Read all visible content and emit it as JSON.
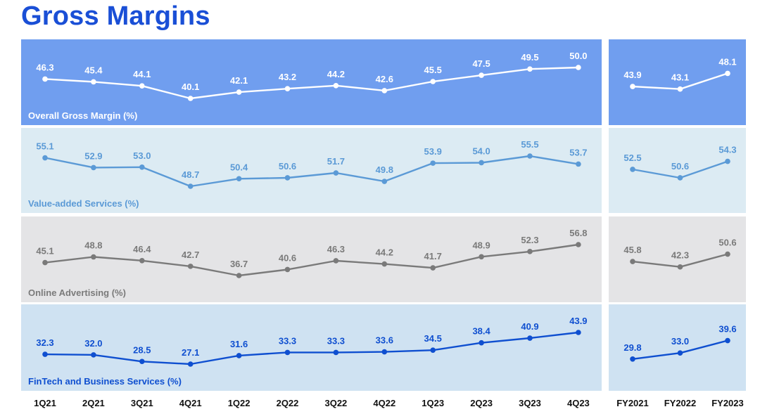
{
  "title": "Gross Margins",
  "chart_data": {
    "type": "line",
    "title": "Gross Margins",
    "quarter_categories": [
      "1Q21",
      "2Q21",
      "3Q21",
      "4Q21",
      "1Q22",
      "2Q22",
      "3Q22",
      "4Q22",
      "1Q23",
      "2Q23",
      "3Q23",
      "4Q23"
    ],
    "year_categories": [
      "FY2021",
      "FY2022",
      "FY2023"
    ],
    "series": [
      {
        "name": "Overall Gross Margin (%)",
        "quarterly": [
          46.3,
          45.4,
          44.1,
          40.1,
          42.1,
          43.2,
          44.2,
          42.6,
          45.5,
          47.5,
          49.5,
          50.0
        ],
        "quarterly_labels": [
          "46.3",
          "45.4",
          "44.1",
          "40.1",
          "42.1",
          "43.2",
          "44.2",
          "42.6",
          "45.5",
          "47.5",
          "49.5",
          "50.0"
        ],
        "yearly": [
          43.9,
          43.1,
          48.1
        ],
        "yearly_labels": [
          "43.9",
          "43.1",
          "48.1"
        ],
        "panel_bg": "#709eef",
        "line_color": "#ffffff",
        "text_color": "#ffffff"
      },
      {
        "name": "Value-added Services (%)",
        "quarterly": [
          55.1,
          52.9,
          53.0,
          48.7,
          50.4,
          50.6,
          51.7,
          49.8,
          53.9,
          54.0,
          55.5,
          53.7
        ],
        "quarterly_labels": [
          "55.1",
          "52.9",
          "53.0",
          "48.7",
          "50.4",
          "50.6",
          "51.7",
          "49.8",
          "53.9",
          "54.0",
          "55.5",
          "53.7"
        ],
        "yearly": [
          52.5,
          50.6,
          54.3
        ],
        "yearly_labels": [
          "52.5",
          "50.6",
          "54.3"
        ],
        "panel_bg": "#dcebf3",
        "line_color": "#5b9ad6",
        "text_color": "#5b9ad6"
      },
      {
        "name": "Online Advertising (%)",
        "quarterly": [
          45.1,
          48.8,
          46.4,
          42.7,
          36.7,
          40.6,
          46.3,
          44.2,
          41.7,
          48.9,
          52.3,
          56.8
        ],
        "quarterly_labels": [
          "45.1",
          "48.8",
          "46.4",
          "42.7",
          "36.7",
          "40.6",
          "46.3",
          "44.2",
          "41.7",
          "48.9",
          "52.3",
          "56.8"
        ],
        "yearly": [
          45.8,
          42.3,
          50.6
        ],
        "yearly_labels": [
          "45.8",
          "42.3",
          "50.6"
        ],
        "panel_bg": "#e4e4e6",
        "line_color": "#7a7a7a",
        "text_color": "#7a7a7a"
      },
      {
        "name": "FinTech and Business Services (%)",
        "quarterly": [
          32.3,
          32.0,
          28.5,
          27.1,
          31.6,
          33.3,
          33.3,
          33.6,
          34.5,
          38.4,
          40.9,
          43.9
        ],
        "quarterly_labels": [
          "32.3",
          "32.0",
          "28.5",
          "27.1",
          "31.6",
          "33.3",
          "33.3",
          "33.6",
          "34.5",
          "38.4",
          "40.9",
          "43.9"
        ],
        "yearly": [
          29.8,
          33.0,
          39.6
        ],
        "yearly_labels": [
          "29.8",
          "33.0",
          "39.6"
        ],
        "panel_bg": "#cfe2f2",
        "line_color": "#0f4fd0",
        "text_color": "#0f4fd0"
      }
    ]
  }
}
